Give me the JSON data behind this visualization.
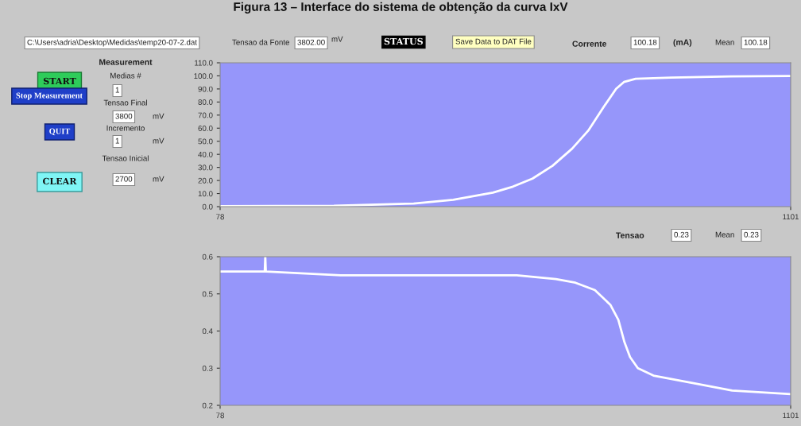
{
  "chart_data": [
    {
      "type": "other",
      "title": "Figura 13 – Interface do sistema de obtenção da curva IxV",
      "annotations": [
        "C:\\Users\\adria\\Desktop\\Medidas\\temp20-07-2.dat",
        "Tensao da Fonte",
        "3802.00",
        "mV",
        "STATUS",
        "Save Data to DAT File",
        "Corrente",
        "100.18",
        "(mA)",
        "Mean",
        "100.18",
        "Measurement",
        "START",
        "Medias #",
        "1",
        "Stop Measurement",
        "Tensao Final",
        "3800",
        "mV",
        "Incremento",
        "QUIT",
        "1",
        "mV",
        "Tensao Inicial",
        "CLEAR",
        "2700",
        "mV",
        "Tensao",
        "0.23",
        "Mean",
        "0.23"
      ]
    },
    {
      "type": "line",
      "color": "#ffffff",
      "x": [
        78,
        282,
        425,
        496,
        567,
        603,
        638,
        674,
        709,
        738,
        766,
        788,
        802,
        823,
        887,
        994,
        1101
      ],
      "values": [
        0.3,
        0.6,
        2.4,
        5.2,
        10.7,
        15.3,
        21.4,
        31.2,
        44.3,
        58.1,
        76.4,
        90.1,
        95.3,
        97.8,
        98.7,
        99.6,
        99.9
      ],
      "xlim": [
        78,
        1101
      ],
      "xticks": [
        78,
        1101
      ],
      "ylim": [
        0,
        110
      ],
      "yticks": [
        {
          "value": 0,
          "label": "0.0"
        },
        {
          "value": 10,
          "label": "10.0"
        },
        {
          "value": 20,
          "label": "20.0"
        },
        {
          "value": 30,
          "label": "30.0"
        },
        {
          "value": 40,
          "label": "40.0"
        },
        {
          "value": 50,
          "label": "50.0"
        },
        {
          "value": 60,
          "label": "60.0"
        },
        {
          "value": 70,
          "label": "70.0"
        },
        {
          "value": 80,
          "label": "80.0"
        },
        {
          "value": 90,
          "label": "90.0"
        },
        {
          "value": 100,
          "label": "100.0"
        },
        {
          "value": 110,
          "label": "110.0"
        }
      ]
    },
    {
      "type": "line",
      "color": "#ffffff",
      "x": [
        78,
        153,
        158,
        159,
        160,
        294,
        504,
        610,
        680,
        715,
        750,
        778,
        792,
        803,
        813,
        827,
        855,
        925,
        996,
        1101
      ],
      "values": [
        0.56,
        0.56,
        0.56,
        0.6,
        0.56,
        0.55,
        0.55,
        0.55,
        0.54,
        0.53,
        0.51,
        0.47,
        0.43,
        0.37,
        0.33,
        0.3,
        0.28,
        0.26,
        0.24,
        0.23
      ],
      "xlim": [
        78,
        1101
      ],
      "xticks": [
        78,
        1101
      ],
      "ylim": [
        0.2,
        0.6
      ],
      "yticks": [
        0.2,
        0.3,
        0.4,
        0.5,
        0.6
      ]
    }
  ]
}
